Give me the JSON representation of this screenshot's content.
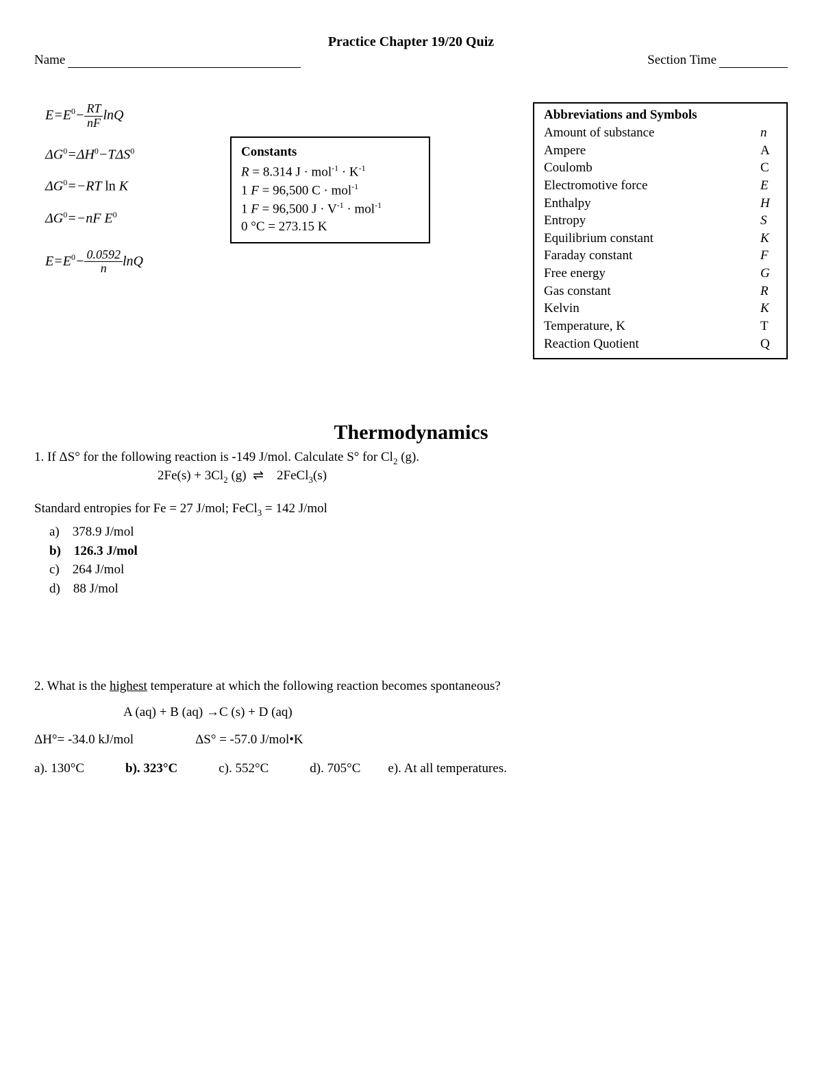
{
  "header": {
    "title": "Practice Chapter 19/20 Quiz",
    "name_label": "Name",
    "section_label": "Section Time"
  },
  "equations": {
    "eq1_lhs": "E=E",
    "eq1_frac_num": "RT",
    "eq1_frac_den": "nF",
    "eq1_tail": "lnQ",
    "eq2": "ΔG⁰=ΔH⁰−TΔS⁰",
    "eq3": "ΔG⁰=−RT ln K",
    "eq4": "ΔG⁰=−nFE⁰",
    "eq5_lhs": "E=E",
    "eq5_frac_num": "0.0592",
    "eq5_frac_den": "n",
    "eq5_tail": "lnQ"
  },
  "constants": {
    "title": "Constants",
    "lines": [
      "R = 8.314 J · mol⁻¹ · K⁻¹",
      "1 F = 96,500 C · mol⁻¹",
      "1 F = 96,500 J · V⁻¹ · mol⁻¹",
      "0 °C = 273.15 K"
    ]
  },
  "abbrev": {
    "title": "Abbreviations and Symbols",
    "rows": [
      {
        "name": "Amount of substance",
        "sym": "n",
        "italic": true
      },
      {
        "name": "Ampere",
        "sym": "A",
        "italic": false
      },
      {
        "name": "Coulomb",
        "sym": "C",
        "italic": false
      },
      {
        "name": "Electromotive force",
        "sym": "E",
        "italic": true
      },
      {
        "name": "Enthalpy",
        "sym": "H",
        "italic": true
      },
      {
        "name": "Entropy",
        "sym": "S",
        "italic": true
      },
      {
        "name": "Equilibrium constant",
        "sym": "K",
        "italic": true
      },
      {
        "name": "Faraday constant",
        "sym": "F",
        "italic": true
      },
      {
        "name": "Free energy",
        "sym": "G",
        "italic": true
      },
      {
        "name": "Gas constant",
        "sym": "R",
        "italic": true
      },
      {
        "name": "Kelvin",
        "sym": "K",
        "italic": true
      },
      {
        "name": "Temperature, K",
        "sym": "T",
        "italic": false
      },
      {
        "name": "Reaction Quotient",
        "sym": "Q",
        "italic": false
      }
    ]
  },
  "section_title": "Thermodynamics",
  "q1": {
    "text_pre": "1.  If ΔS° for the following reaction is -149 J/mol.   Calculate S° for Cl",
    "text_sub": "2",
    "text_post": " (g).",
    "reaction": "2Fe(s) + 3Cl₂ (g)  ⇌    2FeCl₃(s)",
    "std": "Standard entropies for Fe = 27 J/mol; FeCl₃ = 142 J/mol",
    "choices": [
      {
        "label": "a)",
        "text": "378.9 J/mol",
        "bold": false
      },
      {
        "label": "b)",
        "text": "126.3 J/mol",
        "bold": true
      },
      {
        "label": "c)",
        "text": "264 J/mol",
        "bold": false
      },
      {
        "label": "d)",
        "text": "88 J/mol",
        "bold": false
      }
    ]
  },
  "q2": {
    "text_pre": "2. What is the ",
    "text_underline": "highest",
    "text_post": " temperature at which the following reaction becomes spontaneous?",
    "reaction": "A (aq) + B (aq) →C (s) + D (aq)",
    "dH": "ΔH°= -34.0 kJ/mol",
    "dS": "ΔS° = -57.0 J/mol•K",
    "choices": [
      {
        "label": "a). 130°C",
        "bold": false
      },
      {
        "label": "b). 323°C",
        "bold": true
      },
      {
        "label": "c). 552°C",
        "bold": false
      },
      {
        "label": "d). 705°C",
        "bold": false
      },
      {
        "label": "e). At all temperatures.",
        "bold": false
      }
    ]
  }
}
